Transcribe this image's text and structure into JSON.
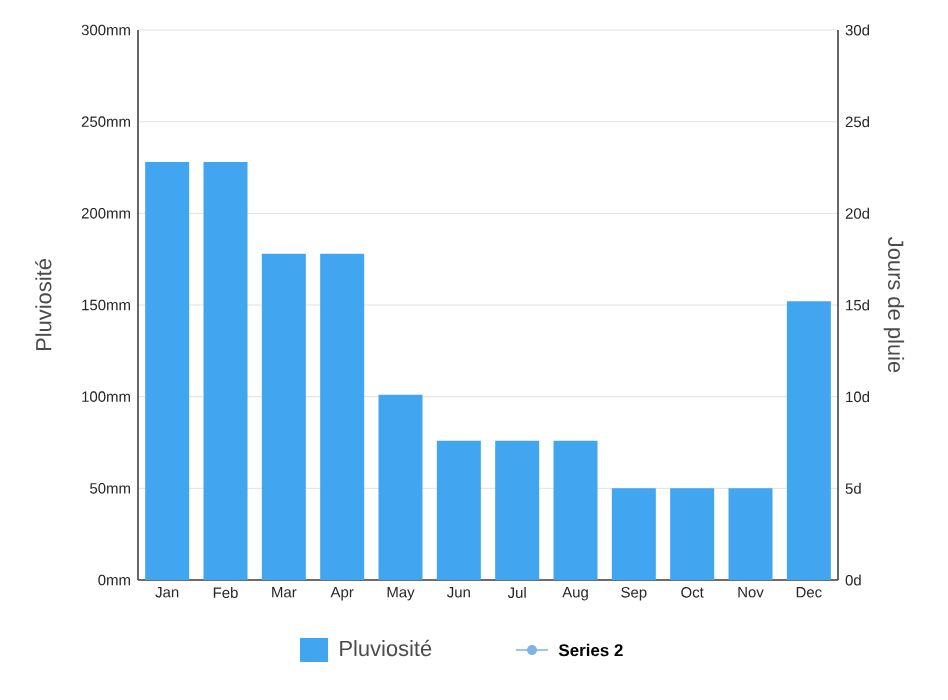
{
  "chart_data": {
    "type": "bar",
    "categories": [
      "Jan",
      "Feb",
      "Mar",
      "Apr",
      "May",
      "Jun",
      "Jul",
      "Aug",
      "Sep",
      "Oct",
      "Nov",
      "Dec"
    ],
    "series": [
      {
        "name": "Pluviosité",
        "color": "#42a5f0",
        "values": [
          228,
          228,
          178,
          178,
          101,
          76,
          76,
          76,
          50,
          50,
          50,
          152
        ]
      },
      {
        "name": "Series 2",
        "color": "#7fb2e5",
        "type": "line",
        "marker": "circle",
        "values": [
          null,
          null,
          null,
          null,
          null,
          null,
          null,
          null,
          null,
          null,
          null,
          null
        ]
      }
    ],
    "ylabel": "Pluviosité",
    "y2label": "Jours de pluie",
    "ylim": [
      0,
      300
    ],
    "yticks": [
      {
        "value": 0,
        "label": "0mm"
      },
      {
        "value": 50,
        "label": "50mm"
      },
      {
        "value": 100,
        "label": "100mm"
      },
      {
        "value": 150,
        "label": "150mm"
      },
      {
        "value": 200,
        "label": "200mm"
      },
      {
        "value": 250,
        "label": "250mm"
      },
      {
        "value": 300,
        "label": "300mm"
      }
    ],
    "y2lim": [
      0,
      30
    ],
    "y2ticks": [
      {
        "value": 0,
        "label": "0d"
      },
      {
        "value": 5,
        "label": "5d"
      },
      {
        "value": 10,
        "label": "10d"
      },
      {
        "value": 15,
        "label": "15d"
      },
      {
        "value": 20,
        "label": "20d"
      },
      {
        "value": 25,
        "label": "25d"
      },
      {
        "value": 30,
        "label": "30d"
      }
    ],
    "grid": "y",
    "legend": "bottom"
  }
}
